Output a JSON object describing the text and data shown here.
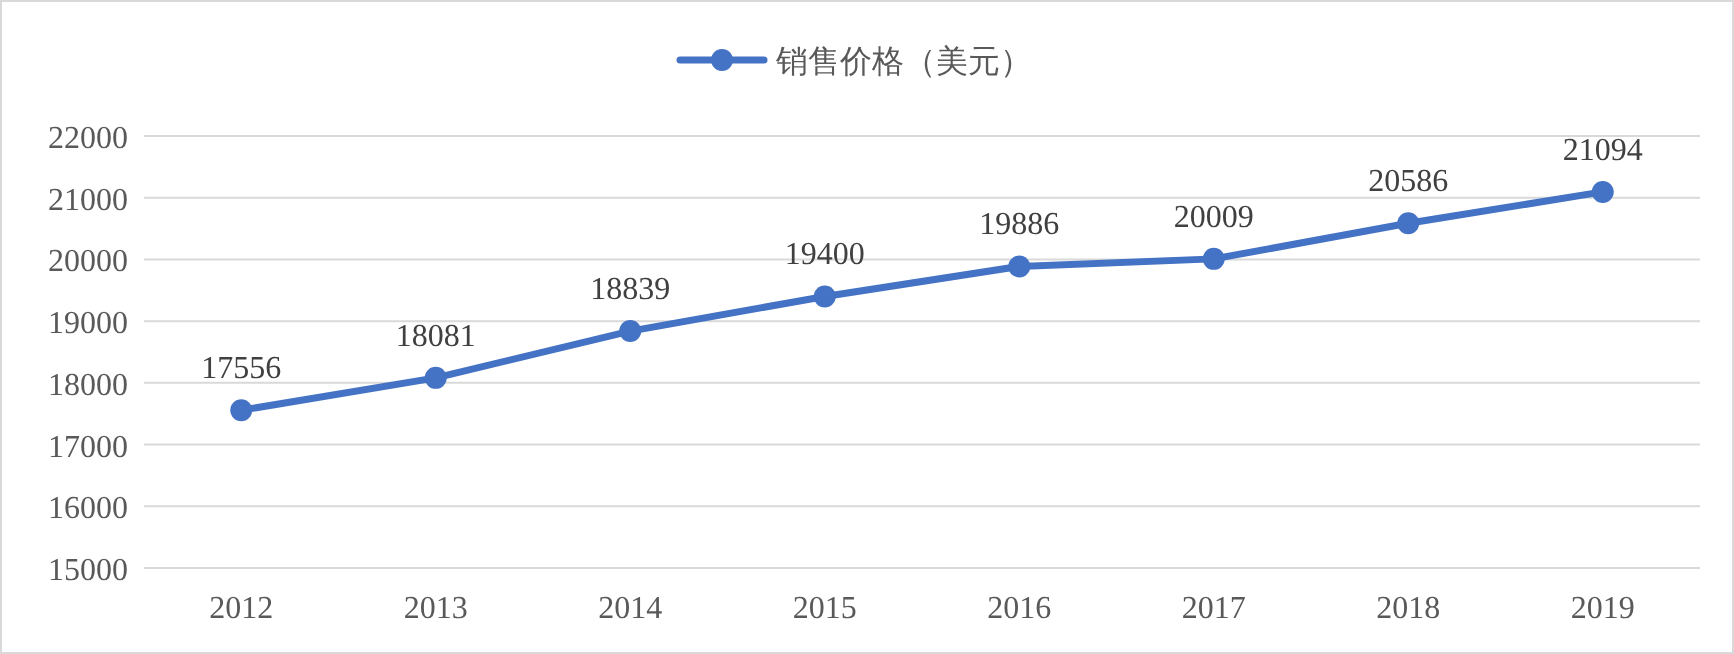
{
  "chart_data": {
    "type": "line",
    "categories": [
      "2012",
      "2013",
      "2014",
      "2015",
      "2016",
      "2017",
      "2018",
      "2019"
    ],
    "series": [
      {
        "name": "销售价格（美元）",
        "color": "#4472c4",
        "values": [
          17556,
          18081,
          18839,
          19400,
          19886,
          20009,
          20586,
          21094
        ]
      }
    ],
    "ylim": [
      15000,
      22000
    ],
    "yticks": [
      15000,
      16000,
      17000,
      18000,
      19000,
      20000,
      21000,
      22000
    ],
    "grid": "y",
    "legend": "top",
    "marker": "circle",
    "line_style": "solid",
    "data_labels": true
  }
}
